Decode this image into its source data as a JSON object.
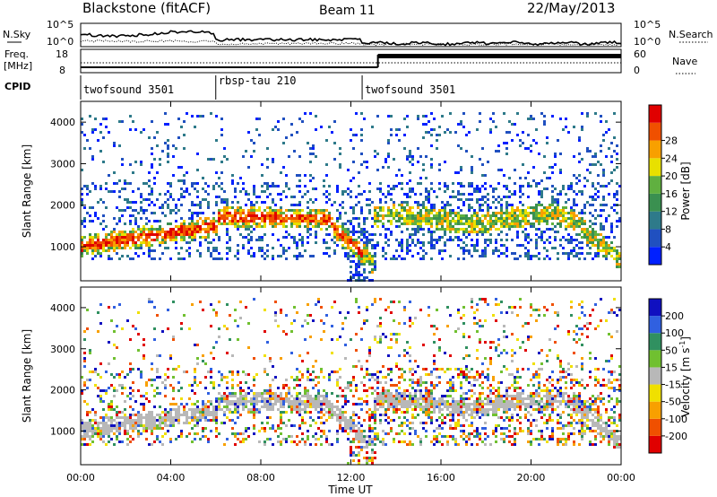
{
  "header": {
    "station": "Blackstone (fitACF)",
    "beam": "Beam 11",
    "date": "22/May/2013"
  },
  "nsky_panel": {
    "left_label": "N.Sky",
    "right_label": "N.Search",
    "left_ticks": [
      "10^5",
      "10^0"
    ],
    "right_ticks": [
      "10^5",
      "10^0"
    ]
  },
  "freq_panel": {
    "left_label_line1": "Freq.",
    "left_label_line2": "[MHz]",
    "right_label": "Nave",
    "left_ticks": [
      "18",
      "8"
    ],
    "right_ticks": [
      "60",
      "0"
    ]
  },
  "cpid": {
    "label": "CPID",
    "segments": [
      {
        "name": "twofsound 3501",
        "start_h": 0,
        "end_h": 6
      },
      {
        "name": "rbsp-tau 210",
        "start_h": 6,
        "end_h": 12.5
      },
      {
        "name": "twofsound 3501",
        "start_h": 12.5,
        "end_h": 24
      }
    ]
  },
  "x_axis": {
    "label": "Time UT",
    "ticks": [
      "00:00",
      "04:00",
      "08:00",
      "12:00",
      "16:00",
      "20:00",
      "00:00"
    ],
    "range_hours": [
      0,
      24
    ]
  },
  "chart_data": [
    {
      "type": "heatmap",
      "name": "power",
      "ylabel": "Slant Range [km]",
      "y_ticks": [
        "1000",
        "2000",
        "3000",
        "4000"
      ],
      "ylim": [
        180,
        4500
      ],
      "colorbar": {
        "label": "Power [dB]",
        "ticks": [
          "4",
          "8",
          "12",
          "16",
          "20",
          "24",
          "28"
        ],
        "range": [
          0,
          32
        ],
        "colors": [
          "#0020ff",
          "#2050c0",
          "#2e7a8a",
          "#3a9050",
          "#60b040",
          "#e8e000",
          "#f8a000",
          "#f05000",
          "#e00000"
        ]
      }
    },
    {
      "type": "heatmap",
      "name": "velocity",
      "ylabel": "Slant Range [km]",
      "y_ticks": [
        "1000",
        "2000",
        "3000",
        "4000"
      ],
      "ylim": [
        180,
        4500
      ],
      "colorbar": {
        "label": "Velocity [m s",
        "label_sup": "-1",
        "label_end": "]",
        "ticks": [
          "200",
          "100",
          "50",
          "15",
          "-15",
          "-50",
          "-100",
          "-200"
        ],
        "colors": [
          "#1010c0",
          "#3060e0",
          "#309060",
          "#70c030",
          "#b8b8b8",
          "#f0e000",
          "#f8a000",
          "#f05000",
          "#e00000"
        ]
      }
    }
  ]
}
